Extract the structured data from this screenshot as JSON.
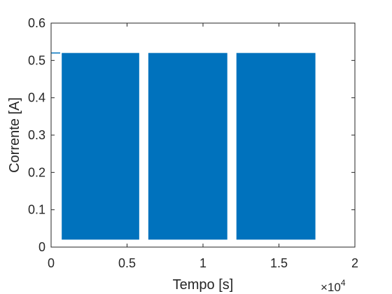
{
  "chart_data": {
    "type": "area",
    "title": "",
    "xlabel": "Tempo [s]",
    "ylabel": "Corrente [A]",
    "xlim": [
      0,
      20000
    ],
    "ylim": [
      0,
      0.6
    ],
    "x_ticks": [
      0,
      5000,
      10000,
      15000,
      20000
    ],
    "x_tick_labels": [
      "0",
      "0.5",
      "1",
      "1.5",
      "2"
    ],
    "x_multiplier": "×10",
    "x_multiplier_exponent": "4",
    "y_ticks": [
      0,
      0.1,
      0.2,
      0.3,
      0.4,
      0.5,
      0.6
    ],
    "y_tick_labels": [
      "0",
      "0.1",
      "0.2",
      "0.3",
      "0.4",
      "0.5",
      "0.6"
    ],
    "grid": false,
    "color": "#0072BD",
    "baseline_line": {
      "x": [
        0,
        600
      ],
      "y": 0.52
    },
    "series": [
      {
        "x_start": 700,
        "x_end": 5800,
        "high": 0.52,
        "low": 0.02
      },
      {
        "x_start": 6400,
        "x_end": 11600,
        "high": 0.52,
        "low": 0.02
      },
      {
        "x_start": 12200,
        "x_end": 17400,
        "high": 0.52,
        "low": 0.02
      }
    ]
  }
}
